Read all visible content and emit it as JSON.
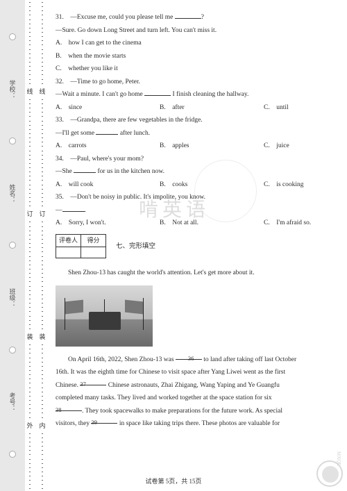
{
  "binding": {
    "labels_outer": [
      "学校：",
      "姓名：",
      "班级：",
      "考号："
    ],
    "chars_inner_top": "线",
    "chars_inner_mid": "订",
    "chars_inner_bot1": "装",
    "chars_inner_bot2": "内",
    "chars_outer_top": "线",
    "chars_outer_mid": "订",
    "chars_outer_bot1": "装",
    "chars_outer_bot2": "外"
  },
  "q31": {
    "stem": "31.　—Excuse me, could you please tell me ",
    "tail": "?",
    "reply": "—Sure. Go down Long Street and turn left. You can't miss it.",
    "A": "A.　how I can get to the cinema",
    "B": "B.　when the movie starts",
    "C": "C.　whether you like it"
  },
  "q32": {
    "stem": "32.　—Time to go home, Peter.",
    "reply1": "—Wait a minute. I can't go home ",
    "reply2": " I finish cleaning the hallway.",
    "A": "A.　since",
    "B": "B.　after",
    "C": "C.　until"
  },
  "q33": {
    "stem": "33.　—Grandpa, there are few vegetables in the fridge.",
    "reply1": "—I'll get some ",
    "reply2": " after lunch.",
    "A": "A.　carrots",
    "B": "B.　apples",
    "C": "C.　juice"
  },
  "q34": {
    "stem": "34.　—Paul, where's your mom?",
    "reply1": "—She ",
    "reply2": " for us in the kitchen now.",
    "A": "A.　will cook",
    "B": "B.　cooks",
    "C": "C.　is cooking"
  },
  "q35": {
    "stem": "35.　—Don't be noisy in public. It's impolite, you know.",
    "reply": "—",
    "A": "A.　Sorry, I won't.",
    "B": "B.　Not at all.",
    "C": "C.　I'm afraid so."
  },
  "score": {
    "c1": "评卷人",
    "c2": "得分"
  },
  "section7": "七、完形填空",
  "passage": {
    "intro": "Shen Zhou-13 has caught the world's attention. Let's get more about it.",
    "p1a": "On April 16th, 2022, Shen Zhou-13 was ",
    "b36": "    36    ",
    "p1b": " to land after taking off last October",
    "p2": "16th. It was the eighth time for Chinese to visit space after Yang Liwei went as the first",
    "p3a": "Chinese. ",
    "b37": "    37    ",
    "p3b": " Chinese astronauts, Zhai Zhigang, Wang Yaping and Ye Guangfu",
    "p4": "completed many tasks. They lived and worked together at the space station for six",
    "b38": "    38    ",
    "p5a": ". They took spacewalks to make preparations for the future work. As special",
    "p6a": "visitors, they ",
    "b39": "    39    ",
    "p6b": " in space like taking trips there. These photos are valuable for"
  },
  "footer": "试卷第 5页，共 15页",
  "watermark": "啃英语",
  "colors": {
    "text": "#2a2a2a",
    "border": "#333333",
    "strip": "#e8e8e8"
  }
}
